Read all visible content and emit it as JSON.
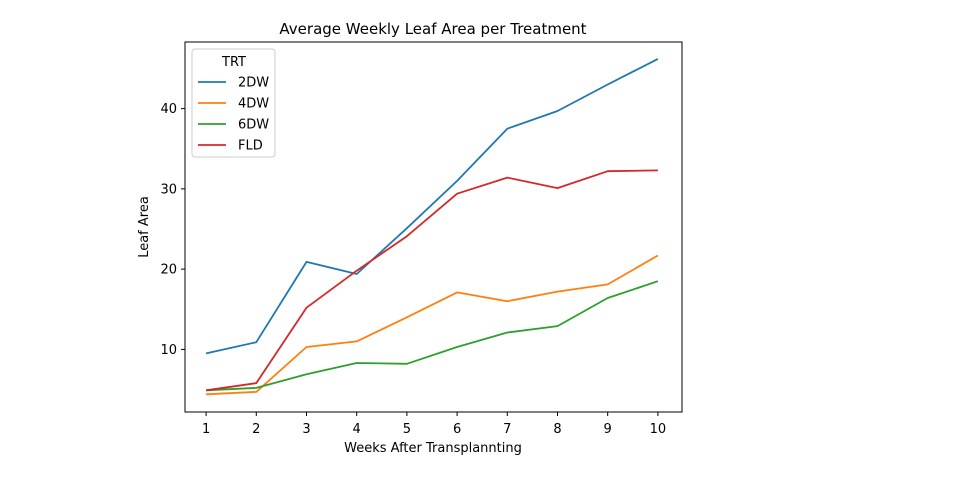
{
  "chart_data": {
    "type": "line",
    "title": "Average Weekly Leaf Area per Treatment",
    "xlabel": "Weeks After Transplannting",
    "ylabel": "Leaf Area",
    "x": [
      1,
      2,
      3,
      4,
      5,
      6,
      7,
      8,
      9,
      10
    ],
    "xticks": [
      "1",
      "2",
      "3",
      "4",
      "5",
      "6",
      "7",
      "8",
      "9",
      "10"
    ],
    "yticks": [
      10,
      20,
      30,
      40
    ],
    "xlim": [
      0.58,
      10.48
    ],
    "ylim": [
      2.2,
      48.3
    ],
    "grid": false,
    "legend": {
      "title": "TRT",
      "placement": "top-left"
    },
    "series": [
      {
        "name": "2DW",
        "color": "#1f77b4",
        "values": [
          9.5,
          10.9,
          20.9,
          19.4,
          25.1,
          31.0,
          37.5,
          39.7,
          43.0,
          46.2
        ]
      },
      {
        "name": "4DW",
        "color": "#ff7f0e",
        "values": [
          4.4,
          4.7,
          10.3,
          11.0,
          14.0,
          17.1,
          16.0,
          17.2,
          18.1,
          21.7
        ]
      },
      {
        "name": "6DW",
        "color": "#2ca02c",
        "values": [
          4.9,
          5.2,
          6.9,
          8.3,
          8.2,
          10.3,
          12.1,
          12.9,
          16.4,
          18.5
        ]
      },
      {
        "name": "FLD",
        "color": "#d62728",
        "values": [
          4.9,
          5.8,
          15.2,
          19.8,
          24.1,
          29.4,
          31.4,
          30.1,
          32.2,
          32.3
        ]
      }
    ]
  }
}
